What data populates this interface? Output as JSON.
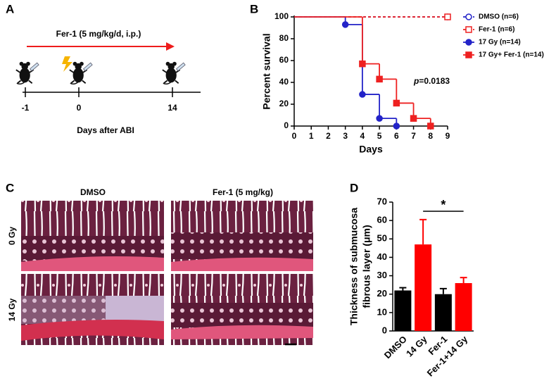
{
  "panels": {
    "A": {
      "label": "A",
      "treatment": "Fer-1 (5 mg/kg/d, i.p.)",
      "timeline_ticks": [
        "-1",
        "0",
        "14"
      ],
      "xlabel": "Days after ABI"
    },
    "B": {
      "label": "B"
    },
    "C": {
      "label": "C",
      "columns": [
        "DMSO",
        "Fer-1 (5 mg/kg)"
      ],
      "rows": [
        "0 Gy",
        "14 Gy"
      ]
    },
    "D": {
      "label": "D"
    }
  },
  "chart_data": [
    {
      "type": "survival",
      "xlabel": "Days",
      "ylabel": "Percent survival",
      "xlim": [
        0,
        9
      ],
      "xticks": [
        0,
        1,
        2,
        3,
        4,
        5,
        6,
        7,
        8,
        9
      ],
      "ylim": [
        0,
        100
      ],
      "yticks": [
        0,
        20,
        40,
        60,
        80,
        100
      ],
      "legend": "right",
      "annotation_symbol": "p",
      "annotation": "=0.0183",
      "series": [
        {
          "name": "DMSO (n=6)",
          "color": "#2323c8",
          "dash": true,
          "marker": "open-circle",
          "x": [
            0,
            9
          ],
          "values": [
            100,
            100
          ]
        },
        {
          "name": "Fer-1 (n=6)",
          "color": "#ee2020",
          "dash": true,
          "marker": "open-square",
          "x": [
            0,
            9
          ],
          "values": [
            100,
            100
          ]
        },
        {
          "name": "17 Gy (n=14)",
          "color": "#2323c8",
          "dash": false,
          "marker": "circle",
          "x": [
            0,
            3,
            4,
            5,
            6
          ],
          "values": [
            100,
            93,
            29,
            7,
            0
          ]
        },
        {
          "name": "17 Gy+ Fer-1 (n=14)",
          "color": "#ee2020",
          "dash": false,
          "marker": "square",
          "x": [
            0,
            4,
            5,
            6,
            7,
            8
          ],
          "values": [
            100,
            57,
            43,
            21,
            7,
            0
          ]
        }
      ]
    },
    {
      "type": "bar",
      "ylabel": [
        "Thickness of submucosa",
        "fibrous layer (μm)"
      ],
      "categories": [
        "DMSO",
        "14 Gy",
        "Fer-1",
        "Fer-1+14 Gy"
      ],
      "values": [
        22,
        47,
        20,
        26
      ],
      "errors": [
        1.5,
        13.5,
        3,
        3
      ],
      "colors": [
        "#000000",
        "#ff0000",
        "#000000",
        "#ff0000"
      ],
      "ylim": [
        0,
        70
      ],
      "yticks": [
        0,
        10,
        20,
        30,
        40,
        50,
        60,
        70
      ],
      "significance": "*"
    }
  ]
}
